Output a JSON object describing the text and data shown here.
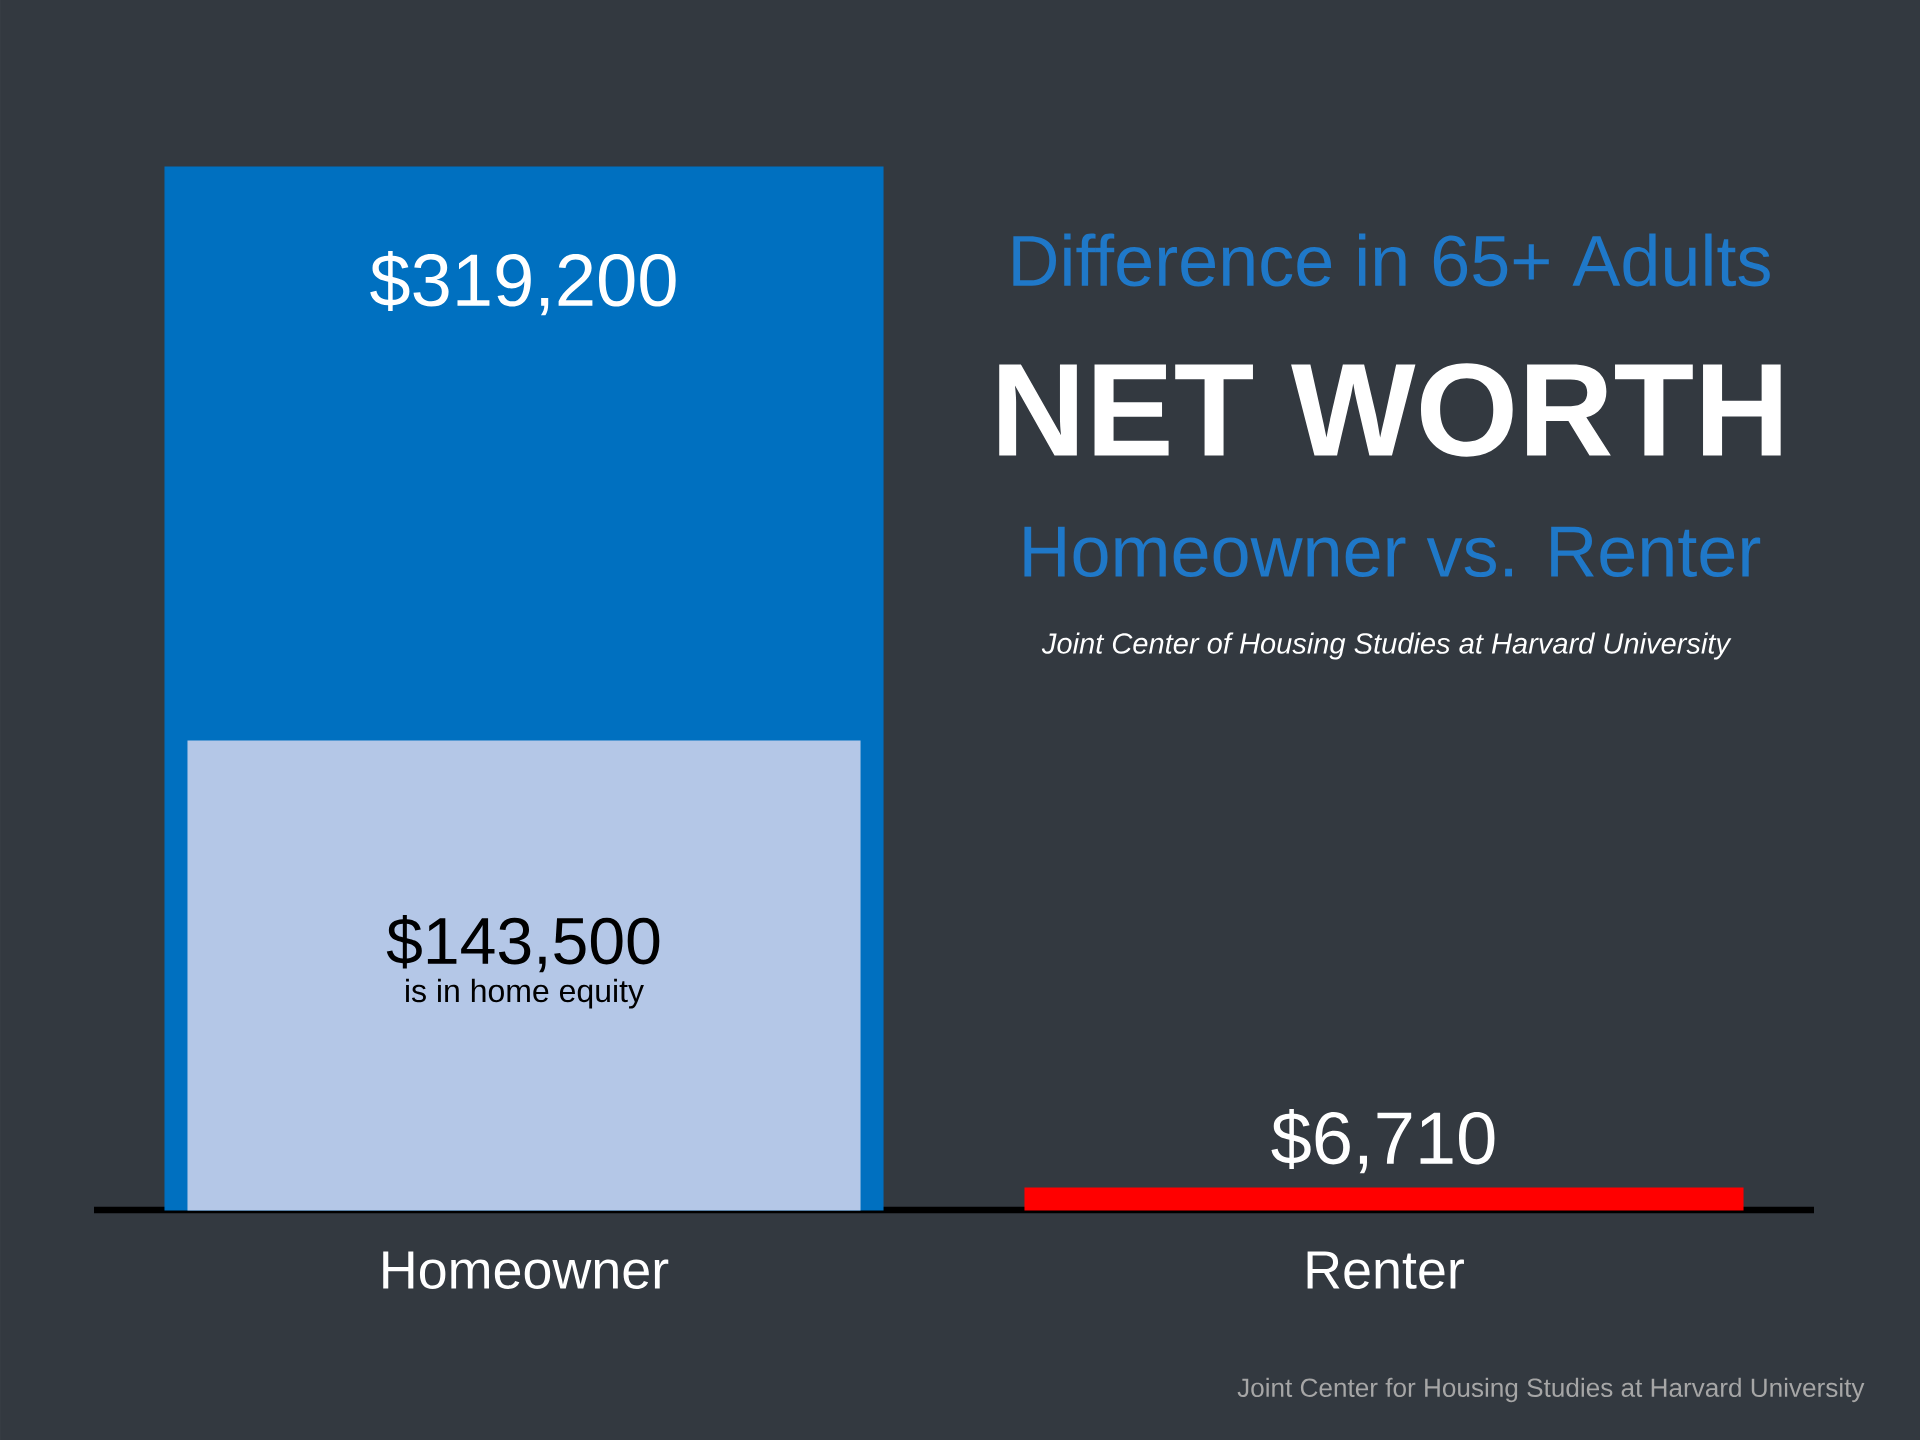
{
  "chart_data": {
    "type": "bar",
    "title": "NET WORTH",
    "subtitle": "Homeowner vs. Renter",
    "annotations": [
      "Difference in 65+ Adults",
      "Joint Center of Housing Studies at Harvard University",
      "Joint Center for Housing Studies at Harvard University"
    ],
    "categories": [
      "Homeowner",
      "Renter"
    ],
    "series": [
      {
        "colors": [
          "#0070c0",
          "#ff0000"
        ],
        "values": [
          319200,
          6710
        ],
        "value_labels": [
          "$319,200",
          "$6,710"
        ]
      },
      {
        "name": "is in home equity",
        "color": "#b4c7e7",
        "values": [
          143500,
          null
        ],
        "value_labels": [
          "$143,500",
          null
        ]
      }
    ]
  }
}
